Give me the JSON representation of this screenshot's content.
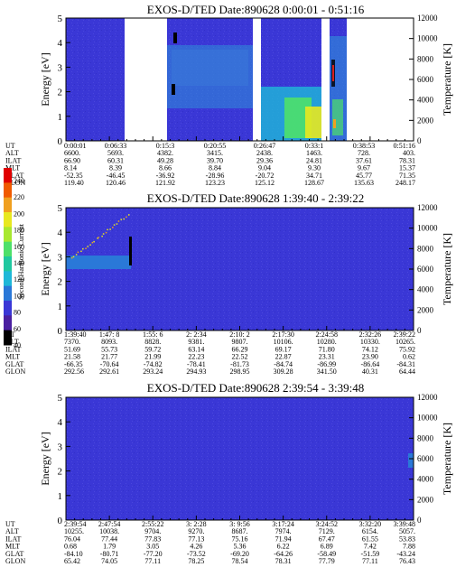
{
  "colors": {
    "background": "#3a37d6",
    "speckle": "#4a47dc",
    "band_cyan": "#1fb8d8",
    "band_green": "#4ee06a",
    "band_yellow": "#e8e820",
    "band_gray": "#8a95c8",
    "band_black": "#000000",
    "band_red": "#d82020",
    "band_orange": "#f0a020"
  },
  "colorbar": {
    "label": "Second Harmonic Current",
    "ticks": [
      "240",
      "220",
      "200",
      "180",
      "160",
      "140",
      "120",
      "100",
      "80",
      "60",
      "40"
    ],
    "colors": [
      "#e00000",
      "#f05a00",
      "#f0a020",
      "#e8e820",
      "#a8e830",
      "#4ee06a",
      "#20c8a0",
      "#1fb8d8",
      "#2a78d8",
      "#3a37d6",
      "#4a20a0",
      "#000000"
    ]
  },
  "chart_data": [
    {
      "type": "heatmap",
      "title": "EXOS-D/TED   Date:890628   0:00:01 - 0:51:16",
      "ylabel": "Energy [eV]",
      "y2label": "Temperature [K]",
      "ylim": [
        0,
        5
      ],
      "y2lim": [
        0,
        12000
      ],
      "y_ticks": [
        "0",
        "1",
        "2",
        "3",
        "4",
        "5"
      ],
      "y2_ticks": [
        "0",
        "2000",
        "4000",
        "6000",
        "8000",
        "10000",
        "12000"
      ],
      "gaps_ut": [
        [
          "0:06:33",
          "0:15:3"
        ],
        [
          "0:26:47",
          "0:28:30"
        ],
        [
          "0:34:00",
          "0:35:40"
        ],
        [
          "0:39:50",
          "0:51:16"
        ]
      ],
      "orbit_table": {
        "row_labels": [
          "UT",
          "ALT",
          "ILAT",
          "MLT",
          "GLAT",
          "GLON"
        ],
        "columns": [
          [
            "0:00:01",
            "6600.",
            "66.90",
            "8.14",
            "-52.35",
            "119.40"
          ],
          [
            "0:06:33",
            "5693.",
            "60.31",
            "8.39",
            "-46.45",
            "120.46"
          ],
          [
            "0:15:3",
            "4382.",
            "49.28",
            "8.66",
            "-36.92",
            "121.92"
          ],
          [
            "0:20:55",
            "3415.",
            "39.70",
            "8.84",
            "-28.96",
            "123.23"
          ],
          [
            "0:26:47",
            "2438.",
            "29.36",
            "9.04",
            "-20.72",
            "125.12"
          ],
          [
            "0:33:1",
            "1463.",
            "24.81",
            "9.30",
            "34.71",
            "128.67"
          ],
          [
            "0:38:53",
            "728.",
            "37.61",
            "9.67",
            "45.77",
            "135.63"
          ],
          [
            "0:51:16",
            "403.",
            "78.31",
            "15.37",
            "71.35",
            "248.17"
          ]
        ]
      }
    },
    {
      "type": "heatmap",
      "title": "EXOS-D/TED   Date:890628   1:39:40 - 2:39:22",
      "ylabel": "Energy [eV]",
      "y2label": "Temperature [K]",
      "ylim": [
        0,
        5
      ],
      "y2lim": [
        0,
        12000
      ],
      "y_ticks": [
        "0",
        "1",
        "2",
        "3",
        "4",
        "5"
      ],
      "y2_ticks": [
        "0",
        "2000",
        "4000",
        "6000",
        "8000",
        "10000",
        "12000"
      ],
      "temperature_segments": [
        {
          "from_ut": "1:39:40",
          "to_ut": "1:47:40",
          "value": 6600
        }
      ],
      "orbit_table": {
        "row_labels": [
          "UT",
          "ALT",
          "ILAT",
          "MLT",
          "GLAT",
          "GLON"
        ],
        "columns": [
          [
            "1:39:40",
            "7370.",
            "51.69",
            "21.58",
            "-66.35",
            "292.56"
          ],
          [
            "1:47: 8",
            "8093.",
            "55.73",
            "21.77",
            "-70.64",
            "292.61"
          ],
          [
            "1:55: 6",
            "8828.",
            "59.72",
            "21.99",
            "-74.82",
            "293.24"
          ],
          [
            "2: 2:34",
            "9381.",
            "63.14",
            "22.23",
            "-78.41",
            "294.93"
          ],
          [
            "2:10: 2",
            "9807.",
            "66.29",
            "22.52",
            "-81.73",
            "298.95"
          ],
          [
            "2:17:30",
            "10106.",
            "69.17",
            "22.87",
            "-84.74",
            "309.28"
          ],
          [
            "2:24:58",
            "10280.",
            "71.80",
            "23.31",
            "-86.99",
            "341.50"
          ],
          [
            "2:32:26",
            "10330.",
            "74.12",
            "23.90",
            "-86.64",
            "40.31"
          ],
          [
            "2:39:22",
            "10265.",
            "75.92",
            "0.62",
            "-84.31",
            "64.44"
          ]
        ]
      }
    },
    {
      "type": "heatmap",
      "title": "EXOS-D/TED   Date:890628   2:39:54 - 3:39:48",
      "ylabel": "Energy [eV]",
      "y2label": "Temperature [K]",
      "ylim": [
        0,
        5
      ],
      "y2lim": [
        0,
        12000
      ],
      "y_ticks": [
        "0",
        "1",
        "2",
        "3",
        "4",
        "5"
      ],
      "y2_ticks": [
        "0",
        "2000",
        "4000",
        "6000",
        "8000",
        "10000",
        "12000"
      ],
      "orbit_table": {
        "row_labels": [
          "UT",
          "ALT",
          "ILAT",
          "MLT",
          "GLAT",
          "GLON"
        ],
        "columns": [
          [
            "2:39:54",
            "10255.",
            "76.04",
            "0.68",
            "-84.10",
            "65.42"
          ],
          [
            "2:47:54",
            "10038.",
            "77.44",
            "1.79",
            "-80.71",
            "74.05"
          ],
          [
            "2:55:22",
            "9704.",
            "77.83",
            "3.05",
            "-77.20",
            "77.11"
          ],
          [
            "3: 2:28",
            "9270.",
            "77.13",
            "4.26",
            "-73.52",
            "78.25"
          ],
          [
            "3: 9:56",
            "8687.",
            "75.16",
            "5.36",
            "-69.20",
            "78.54"
          ],
          [
            "3:17:24",
            "7974.",
            "71.94",
            "6.22",
            "-64.26",
            "78.31"
          ],
          [
            "3:24:52",
            "7129.",
            "67.47",
            "6.89",
            "-58.49",
            "77.79"
          ],
          [
            "3:32:20",
            "6154.",
            "61.55",
            "7.42",
            "-51.59",
            "77.11"
          ],
          [
            "3:39:48",
            "5057.",
            "53.83",
            "7.88",
            "-43.24",
            "76.43"
          ]
        ]
      }
    }
  ]
}
